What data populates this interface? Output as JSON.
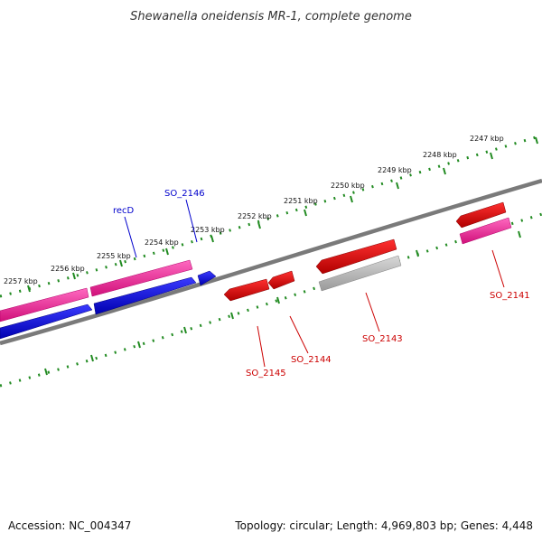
{
  "title": "Shewanella oneidensis MR-1, complete genome",
  "footer": {
    "accession": "Accession: NC_004347",
    "summary": "Topology: circular; Length: 4,969,803 bp; Genes: 4,448"
  },
  "ruler_ticks": [
    "2257 kbp",
    "2256 kbp",
    "2255 kbp",
    "2254 kbp",
    "2253 kbp",
    "2252 kbp",
    "2251 kbp",
    "2250 kbp",
    "2249 kbp",
    "2248 kbp",
    "2247 kbp"
  ],
  "genes": {
    "recD": "recD",
    "SO_2146": "SO_2146",
    "SO_2145": "SO_2145",
    "SO_2144": "SO_2144",
    "SO_2143": "SO_2143",
    "SO_2141": "SO_2141"
  },
  "colors": {
    "forward_label": "#0000cc",
    "reverse_label": "#cc0000",
    "blue_gene": "#0000ee",
    "red_gene": "#ee0000",
    "pink_gene": "#ff1493",
    "gray_gene": "#b0b0b0",
    "ruler": "#228b22",
    "backbone": "#777777"
  }
}
